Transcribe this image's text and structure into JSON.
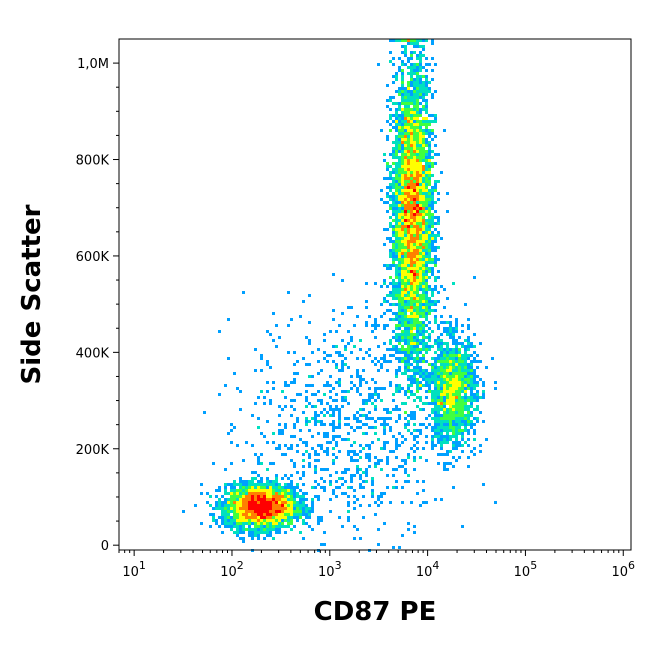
{
  "chart_data": {
    "type": "scatter",
    "plot_style": "flow cytometry density dot plot",
    "title": "",
    "xlabel": "CD87 PE",
    "ylabel": "Side Scatter",
    "x_scale": "log",
    "y_scale": "linear",
    "xlim": [
      7,
      1200000
    ],
    "ylim": [
      -10000,
      1050000
    ],
    "x_ticks": [
      {
        "value": 10,
        "base": "10",
        "exp": "1"
      },
      {
        "value": 100,
        "base": "10",
        "exp": "2"
      },
      {
        "value": 1000,
        "base": "10",
        "exp": "3"
      },
      {
        "value": 10000,
        "base": "10",
        "exp": "4"
      },
      {
        "value": 100000,
        "base": "10",
        "exp": "5"
      },
      {
        "value": 1000000,
        "base": "10",
        "exp": "6"
      }
    ],
    "y_ticks": [
      {
        "value": 0,
        "label": "0"
      },
      {
        "value": 200000,
        "label": "200K"
      },
      {
        "value": 400000,
        "label": "400K"
      },
      {
        "value": 600000,
        "label": "600K"
      },
      {
        "value": 800000,
        "label": "800K"
      },
      {
        "value": 1000000,
        "label": "1,0M"
      }
    ],
    "grid": false,
    "legend": "none",
    "density_colormap": [
      "#0000ff",
      "#00a0ff",
      "#00e0c0",
      "#40ff40",
      "#ffff00",
      "#ff8000",
      "#ff0000"
    ],
    "populations": [
      {
        "cx": 200,
        "cy": 80000,
        "sx_log10": 0.18,
        "sy": 22000,
        "n": 3200
      },
      {
        "cx": 7000,
        "cy": 680000,
        "sx_log10": 0.1,
        "sy": 150000,
        "n": 6500
      },
      {
        "cx": 18000,
        "cy": 320000,
        "sx_log10": 0.12,
        "sy": 55000,
        "n": 1600
      },
      {
        "cx": 1500,
        "cy": 250000,
        "sx_log10": 0.5,
        "sy": 120000,
        "n": 900
      }
    ]
  }
}
